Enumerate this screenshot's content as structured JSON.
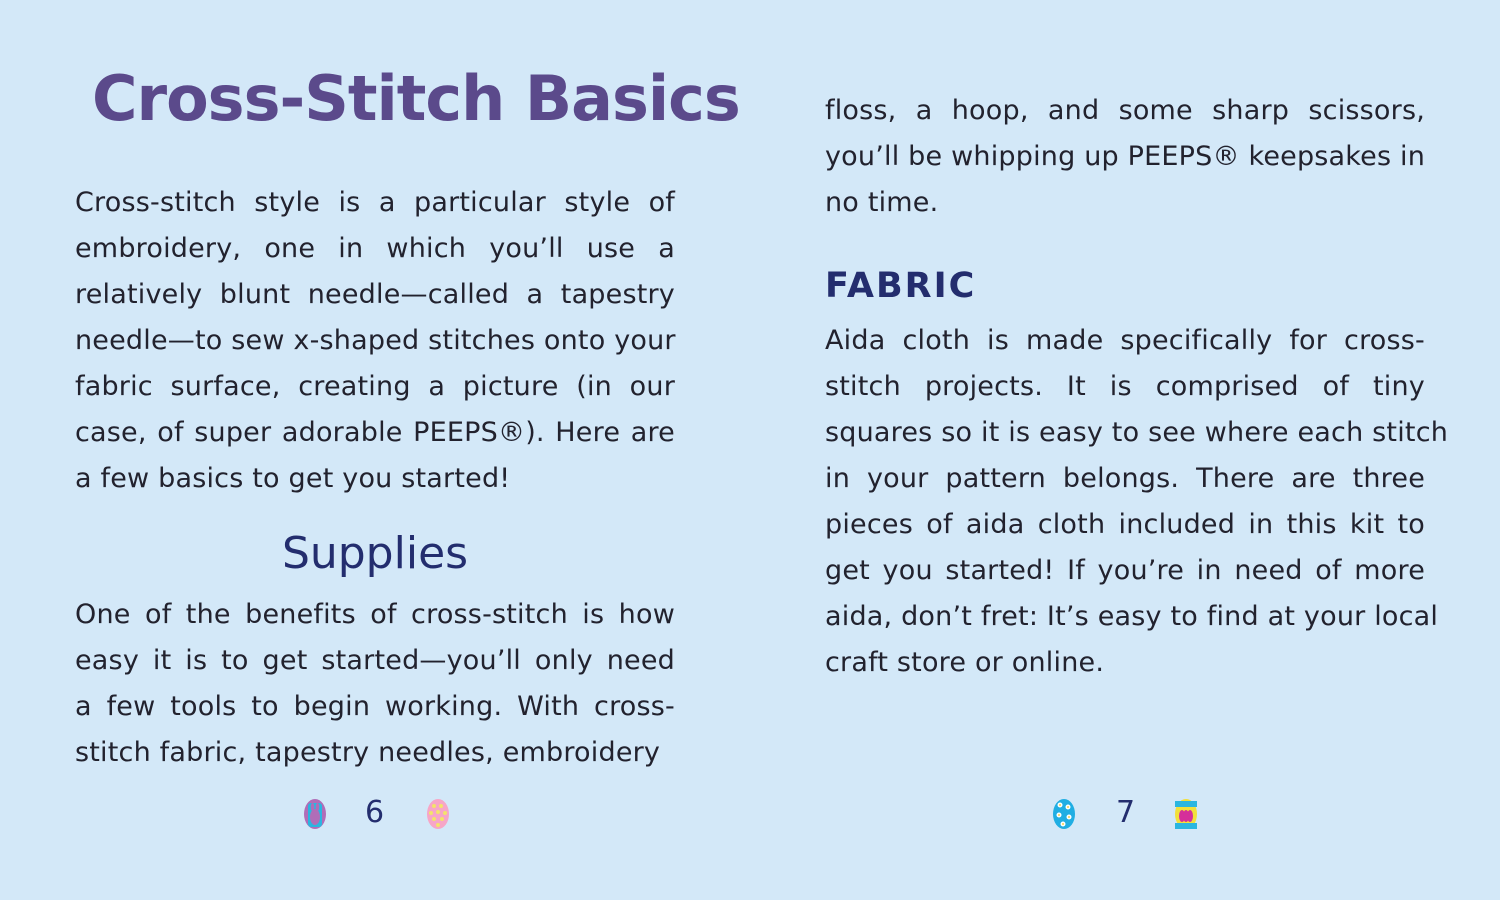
{
  "left_page": {
    "title": "Cross-Stitch Basics",
    "intro_lines": [
      "Cross-stitch style is a particular style of",
      "embroidery, one in which you’ll use a",
      "relatively blunt needle—called a tapestry",
      "needle—to sew x-shaped stitches onto your",
      "fabric surface, creating a picture (in our",
      "case, of super adorable PEEPS®). Here are",
      "a few basics to get you started!"
    ],
    "supplies_heading": "Supplies",
    "supplies_lines": [
      "One of the benefits of cross-stitch is how",
      "easy it is to get started—you’ll only need",
      "a few tools to begin working. With cross-",
      "stitch fabric, tapestry needles, embroidery"
    ],
    "page_number": "6"
  },
  "right_page": {
    "supplies_cont_lines": [
      "floss, a hoop, and some sharp scissors,",
      "you’ll be whipping up PEEPS® keepsakes in",
      "no time."
    ],
    "fabric_heading": "FABRIC",
    "fabric_lines": [
      "Aida cloth is made specifically for cross-",
      "stitch projects. It is comprised of tiny",
      "squares so it is easy to see where each stitch",
      "in your pattern belongs. There are three",
      "pieces of aida cloth included in this kit to",
      "get you started! If you’re in need of more",
      "aida, don’t fret: It’s easy to find at your local",
      "craft store or online."
    ],
    "page_number": "7"
  },
  "icons": [
    "bunny-egg-icon",
    "dotted-egg-icon",
    "flower-egg-icon",
    "bunny-egg-icon"
  ],
  "colors": {
    "background": "#d3e8f8",
    "title": "#5b4a8b",
    "heading": "#232d6e",
    "text": "#22222e"
  }
}
